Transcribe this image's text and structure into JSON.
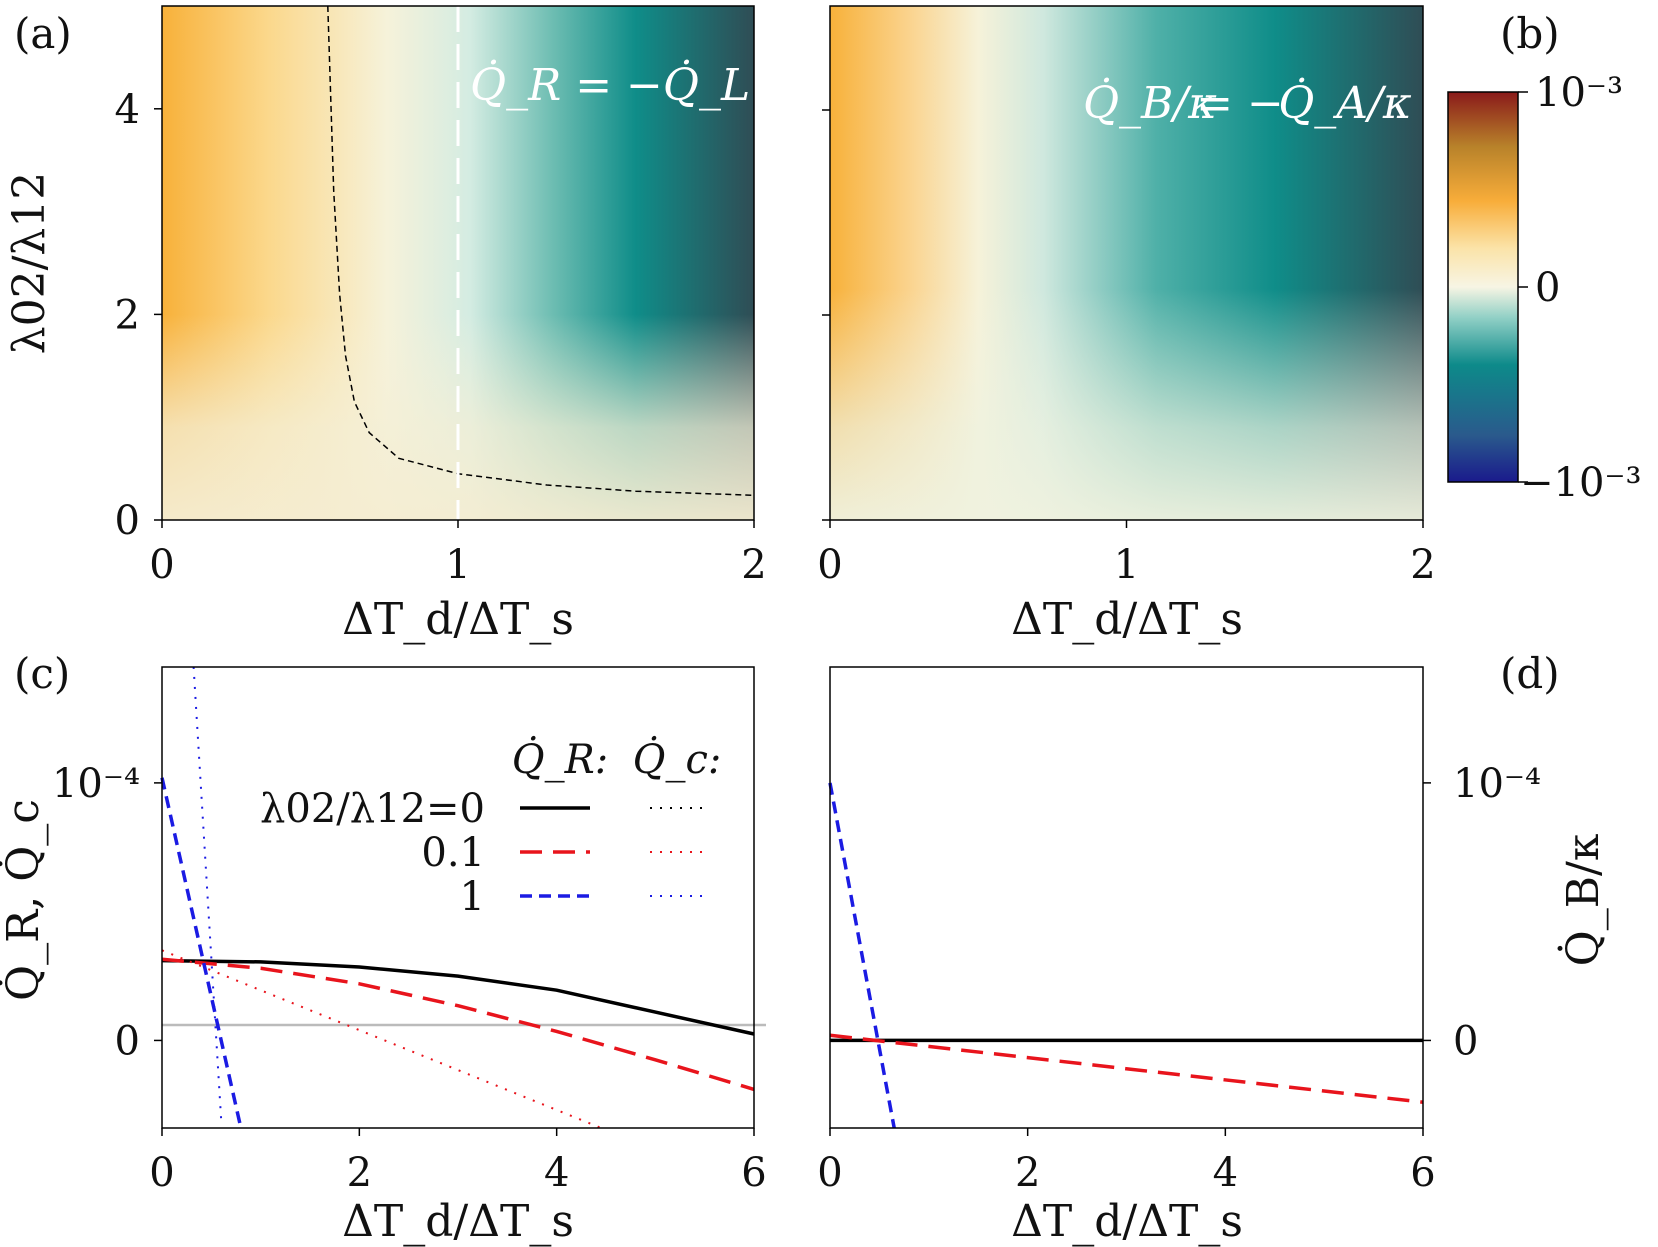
{
  "panels": {
    "a": {
      "label": "(a)"
    },
    "b": {
      "label": "(b)"
    },
    "c": {
      "label": "(c)"
    },
    "d": {
      "label": "(d)"
    }
  },
  "colors": {
    "cmap": [
      "#1a1a8c",
      "#2a5a8c",
      "#0d8a8a",
      "#8fcfc5",
      "#f7f5e4",
      "#fbe3a8",
      "#f8ad3a",
      "#b8822a",
      "#8a1a1a"
    ],
    "black": "#000000",
    "red": "#e8141c",
    "blue": "#1b1be3",
    "zero_line": "#bbbbbb",
    "contour_black": "#000000",
    "contour_white": "#ffffff"
  },
  "chart_data": [
    {
      "panel": "a",
      "type": "heatmap",
      "xlabel": "ΔT_d/ΔT_s",
      "ylabel": "λ02/λ12",
      "xlim": [
        0,
        2
      ],
      "ylim": [
        0,
        5
      ],
      "xticks": [
        "0",
        "1",
        "2"
      ],
      "yticks": [
        "0",
        "2",
        "4"
      ],
      "annotation": "Q̇_R = −Q̇_L",
      "zero_contour": {
        "x": [
          0.56,
          0.58,
          0.6,
          0.62,
          0.65,
          0.7,
          0.8,
          1.0,
          1.3,
          1.6,
          2.0
        ],
        "y": [
          5.0,
          3.2,
          2.2,
          1.6,
          1.15,
          0.85,
          0.6,
          0.45,
          0.34,
          0.28,
          0.24
        ]
      },
      "vertical_line_x": 1
    },
    {
      "panel": "b",
      "type": "heatmap",
      "xlabel": "ΔT_d/ΔT_s",
      "xlim": [
        0,
        2
      ],
      "ylim": [
        0,
        5
      ],
      "xticks": [
        "0",
        "1",
        "2"
      ],
      "annotation_left": "Q̇_B/κ",
      "annotation_right": "Q̇_A/κ",
      "colorbar": {
        "min": -0.001,
        "max": 0.001,
        "ticks": [
          "10⁻³",
          "0",
          "−10⁻³"
        ]
      }
    },
    {
      "panel": "c",
      "type": "line",
      "xlabel": "ΔT_d/ΔT_s",
      "ylabel": "Q̇_R, Q̇_c",
      "xlim": [
        0,
        6
      ],
      "ylim": [
        -3.4e-05,
        0.000145
      ],
      "xticks": [
        "0",
        "2",
        "4",
        "6"
      ],
      "yticks": [
        "0",
        "10⁻⁴"
      ],
      "legend_headers": [
        "Q̇_R:",
        "Q̇_c:"
      ],
      "legend_rows": [
        "λ02/λ12=0",
        "0.1",
        "1"
      ],
      "series": [
        {
          "name": "λ02/λ12=0",
          "kind": "Q_R",
          "x": [
            0,
            1,
            2,
            3,
            4,
            5,
            6
          ],
          "y": [
            3.1e-05,
            3.05e-05,
            2.85e-05,
            2.5e-05,
            1.95e-05,
            1.1e-05,
            2.5e-06
          ]
        },
        {
          "name": "0.1",
          "kind": "Q_R",
          "x": [
            0,
            1,
            2,
            3,
            4,
            5,
            6
          ],
          "y": [
            3.15e-05,
            2.8e-05,
            2.2e-05,
            1.35e-05,
            3.5e-06,
            -7.5e-06,
            -1.9e-05
          ]
        },
        {
          "name": "1",
          "kind": "Q_R",
          "x": [
            0,
            0.8
          ],
          "y": [
            0.000102,
            -3.4e-05
          ]
        },
        {
          "name": "λ02/λ12=0",
          "kind": "Q_c",
          "x": [],
          "y": []
        },
        {
          "name": "0.1",
          "kind": "Q_c",
          "x": [
            0,
            4.45
          ],
          "y": [
            3.5e-05,
            -3.4e-05
          ]
        },
        {
          "name": "1",
          "kind": "Q_c",
          "x": [
            0.32,
            0.6
          ],
          "y": [
            0.000145,
            -3.1e-05
          ]
        }
      ]
    },
    {
      "panel": "d",
      "type": "line",
      "xlabel": "ΔT_d/ΔT_s",
      "ylabel": "Q̇_B/κ",
      "xlim": [
        0,
        6
      ],
      "ylim": [
        -3.4e-05,
        0.000145
      ],
      "xticks": [
        "0",
        "2",
        "4",
        "6"
      ],
      "yticks": [
        "0",
        "10⁻⁴"
      ],
      "series": [
        {
          "name": "λ02/λ12=0",
          "x": [
            0,
            6
          ],
          "y": [
            0,
            0
          ]
        },
        {
          "name": "0.1",
          "x": [
            0,
            6
          ],
          "y": [
            2e-06,
            -2.4e-05
          ]
        },
        {
          "name": "1",
          "x": [
            0,
            0.65
          ],
          "y": [
            0.0001,
            -3.4e-05
          ]
        }
      ]
    }
  ]
}
